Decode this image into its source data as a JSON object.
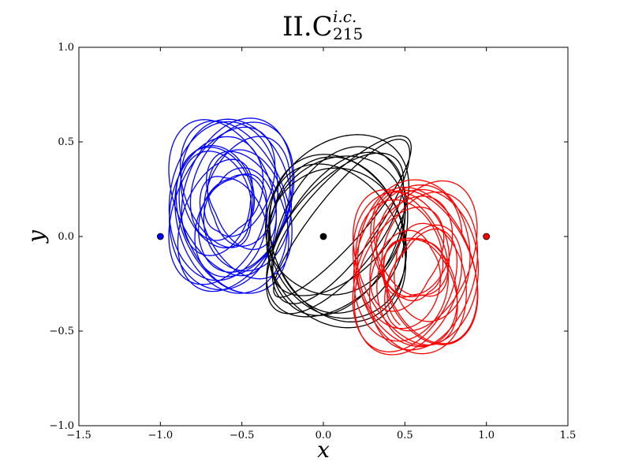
{
  "chart_data": {
    "type": "line",
    "title": {
      "main": "II.C",
      "superscript": "i.c.",
      "subscript": "215"
    },
    "xlabel": "x",
    "ylabel": "y",
    "xlim": [
      -1.5,
      1.5
    ],
    "ylim": [
      -1.0,
      1.0
    ],
    "xticks": [
      -1.5,
      -1.0,
      -0.5,
      0.0,
      0.5,
      1.0,
      1.5
    ],
    "xtick_labels": [
      "−1.5",
      "−1.0",
      "−0.5",
      "0.0",
      "0.5",
      "1.0",
      "1.5"
    ],
    "yticks": [
      -1.0,
      -0.5,
      0.0,
      0.5,
      1.0
    ],
    "ytick_labels": [
      "−1.0",
      "−0.5",
      "0.0",
      "0.5",
      "1.0"
    ],
    "grid": false,
    "series": [
      {
        "color": "#0000ff",
        "start": [
          -1.0,
          0.0
        ],
        "center": [
          -0.45,
          0.05
        ],
        "extent_x": [
          -1.05,
          0.02
        ],
        "extent_y": [
          -0.52,
          0.85
        ]
      },
      {
        "color": "#000000",
        "start": [
          0.0,
          0.0
        ],
        "center": [
          0.0,
          0.0
        ],
        "extent_x": [
          -0.57,
          0.57
        ],
        "extent_y": [
          -0.57,
          0.57
        ]
      },
      {
        "color": "#ff0000",
        "start": [
          1.0,
          0.0
        ],
        "center": [
          0.45,
          -0.05
        ],
        "extent_x": [
          -0.02,
          1.05
        ],
        "extent_y": [
          -0.85,
          0.52
        ]
      }
    ]
  }
}
